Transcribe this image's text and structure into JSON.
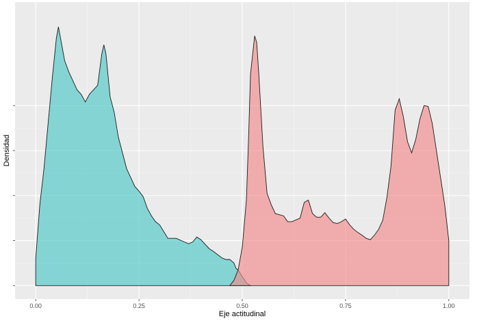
{
  "chart_data": {
    "type": "area",
    "xlabel": "Eje actitudinal",
    "ylabel": "Densidad",
    "xlim": [
      -0.05,
      1.05
    ],
    "ylim": [
      -0.3,
      6.3
    ],
    "x_ticks": [
      0.0,
      0.25,
      0.5,
      0.75,
      1.0
    ],
    "x_tick_labels": [
      "0.00",
      "0.25",
      "0.50",
      "0.75",
      "1.00"
    ],
    "y_ticks": [
      0,
      1,
      2,
      3,
      4
    ],
    "y_tick_labels": [
      "",
      "",
      "",
      "",
      ""
    ],
    "grid": true,
    "legend": "none",
    "panel_background": "#ebebeb",
    "series": [
      {
        "color": "#4fc8c8",
        "fill_opacity": 0.65,
        "x": [
          0.0,
          0.01,
          0.02,
          0.03,
          0.04,
          0.05,
          0.055,
          0.06,
          0.07,
          0.08,
          0.09,
          0.1,
          0.11,
          0.12,
          0.13,
          0.14,
          0.15,
          0.16,
          0.165,
          0.17,
          0.18,
          0.19,
          0.2,
          0.22,
          0.24,
          0.25,
          0.26,
          0.27,
          0.28,
          0.29,
          0.3,
          0.31,
          0.32,
          0.34,
          0.36,
          0.37,
          0.38,
          0.39,
          0.4,
          0.41,
          0.42,
          0.43,
          0.44,
          0.45,
          0.46,
          0.47,
          0.48,
          0.485,
          0.49,
          0.5,
          0.51,
          0.52
        ],
        "y": [
          0.6,
          1.8,
          2.6,
          3.6,
          4.6,
          5.5,
          5.75,
          5.5,
          5.0,
          4.75,
          4.55,
          4.35,
          4.25,
          4.08,
          4.25,
          4.35,
          4.45,
          5.15,
          5.35,
          5.15,
          4.2,
          3.85,
          3.3,
          2.6,
          2.2,
          2.1,
          1.98,
          1.72,
          1.55,
          1.42,
          1.35,
          1.2,
          1.05,
          1.05,
          0.97,
          0.93,
          0.97,
          1.08,
          1.02,
          0.92,
          0.82,
          0.76,
          0.69,
          0.62,
          0.58,
          0.58,
          0.5,
          0.38,
          0.35,
          0.2,
          0.06,
          0.0
        ]
      },
      {
        "color": "#f28b8b",
        "fill_opacity": 0.65,
        "x": [
          0.47,
          0.48,
          0.49,
          0.5,
          0.51,
          0.515,
          0.52,
          0.53,
          0.535,
          0.54,
          0.55,
          0.56,
          0.57,
          0.58,
          0.6,
          0.61,
          0.62,
          0.64,
          0.65,
          0.66,
          0.67,
          0.68,
          0.69,
          0.7,
          0.71,
          0.72,
          0.73,
          0.74,
          0.75,
          0.76,
          0.77,
          0.78,
          0.79,
          0.8,
          0.81,
          0.82,
          0.83,
          0.84,
          0.85,
          0.86,
          0.87,
          0.88,
          0.89,
          0.9,
          0.91,
          0.92,
          0.93,
          0.94,
          0.95,
          0.96,
          0.97,
          0.98,
          0.99,
          1.0
        ],
        "y": [
          0.0,
          0.12,
          0.35,
          0.85,
          1.9,
          3.2,
          4.7,
          5.55,
          5.4,
          4.7,
          3.1,
          2.05,
          1.8,
          1.6,
          1.55,
          1.42,
          1.42,
          1.5,
          1.85,
          1.9,
          1.6,
          1.52,
          1.52,
          1.62,
          1.5,
          1.4,
          1.38,
          1.42,
          1.48,
          1.35,
          1.25,
          1.18,
          1.12,
          1.05,
          1.02,
          1.12,
          1.25,
          1.45,
          1.95,
          2.65,
          3.9,
          4.15,
          3.75,
          3.2,
          2.95,
          3.25,
          3.7,
          4.0,
          3.98,
          3.6,
          3.0,
          2.4,
          1.8,
          1.0
        ]
      }
    ]
  }
}
